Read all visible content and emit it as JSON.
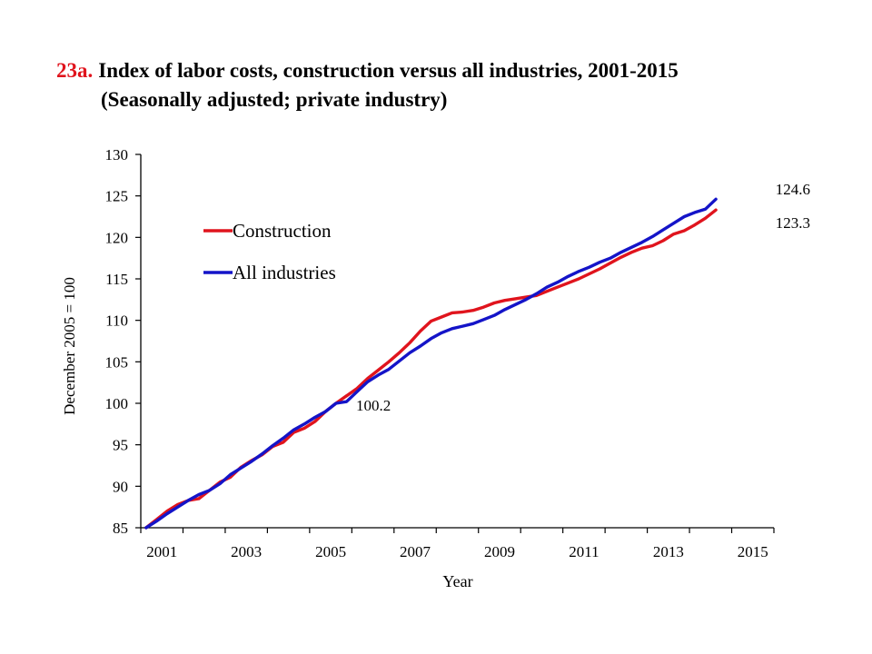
{
  "chart_data": {
    "type": "line",
    "title_number": "23a.",
    "title": "Index of labor costs, construction versus all industries, 2001-2015",
    "subtitle": "(Seasonally adjusted; private industry)",
    "xlabel": "Year",
    "ylabel": "December 2005 = 100",
    "ylim": [
      85,
      130
    ],
    "xlim": [
      2001,
      2016
    ],
    "yticks": [
      85,
      90,
      95,
      100,
      105,
      110,
      115,
      120,
      125,
      130
    ],
    "xtick_labels": [
      "2001",
      "2003",
      "2005",
      "2007",
      "2009",
      "2011",
      "2013",
      "2015"
    ],
    "grid": false,
    "legend_position": "upper-left",
    "annotations": [
      {
        "text": "100.2",
        "x": 2005.75,
        "y": 100.2,
        "series": "All industries"
      },
      {
        "text": "124.6",
        "x": 2015.75,
        "y": 124.6,
        "series": "All industries"
      },
      {
        "text": "123.3",
        "x": 2015.75,
        "y": 123.3,
        "series": "Construction"
      }
    ],
    "series": [
      {
        "name": "Construction",
        "color": "#e0141d",
        "start": 2001,
        "step": 0.25,
        "values": [
          85.0,
          86.0,
          87.0,
          87.8,
          88.3,
          88.5,
          89.5,
          90.5,
          91.1,
          92.3,
          93.1,
          93.8,
          94.8,
          95.3,
          96.5,
          97.0,
          97.8,
          99.0,
          100.0,
          100.9,
          101.8,
          103.0,
          104.0,
          105.0,
          106.1,
          107.3,
          108.7,
          109.9,
          110.4,
          110.9,
          111.0,
          111.2,
          111.6,
          112.1,
          112.4,
          112.6,
          112.8,
          113.0,
          113.5,
          114.0,
          114.5,
          115.0,
          115.6,
          116.2,
          116.9,
          117.6,
          118.2,
          118.7,
          119.0,
          119.6,
          120.4,
          120.8,
          121.5,
          122.3,
          123.3
        ]
      },
      {
        "name": "All industries",
        "color": "#1414c8",
        "start": 2001,
        "step": 0.25,
        "values": [
          85.0,
          85.8,
          86.7,
          87.5,
          88.3,
          89.0,
          89.5,
          90.3,
          91.4,
          92.2,
          93.0,
          93.9,
          94.9,
          95.8,
          96.8,
          97.5,
          98.3,
          99.0,
          100.0,
          100.2,
          101.4,
          102.6,
          103.4,
          104.1,
          105.1,
          106.1,
          106.9,
          107.8,
          108.5,
          109.0,
          109.3,
          109.6,
          110.1,
          110.6,
          111.3,
          111.9,
          112.5,
          113.2,
          114.0,
          114.6,
          115.3,
          115.9,
          116.4,
          117.0,
          117.5,
          118.2,
          118.8,
          119.4,
          120.1,
          120.9,
          121.7,
          122.5,
          123.0,
          123.4,
          124.6
        ]
      }
    ]
  }
}
